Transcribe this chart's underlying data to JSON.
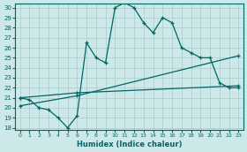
{
  "xlabel": "Humidex (Indice chaleur)",
  "xlim_min": -0.5,
  "xlim_max": 23.5,
  "ylim_min": 17.8,
  "ylim_max": 30.4,
  "xticks": [
    0,
    1,
    2,
    3,
    4,
    5,
    6,
    7,
    8,
    9,
    10,
    11,
    12,
    13,
    14,
    15,
    16,
    17,
    18,
    19,
    20,
    21,
    22,
    23
  ],
  "yticks": [
    18,
    19,
    20,
    21,
    22,
    23,
    24,
    25,
    26,
    27,
    28,
    29,
    30
  ],
  "bg_color": "#cce8e8",
  "grid_color": "#aacccc",
  "line_color": "#006666",
  "line1_x": [
    0,
    1,
    2,
    3,
    4,
    5,
    6,
    7,
    8,
    9,
    10,
    11,
    12,
    13,
    14,
    15,
    16,
    17,
    18,
    19,
    20,
    21,
    22,
    23
  ],
  "line1_y": [
    21.0,
    20.8,
    20.0,
    19.8,
    19.0,
    18.0,
    19.2,
    26.5,
    25.0,
    24.5,
    30.0,
    30.5,
    30.0,
    28.5,
    27.5,
    29.0,
    28.5,
    26.0,
    25.5,
    25.0,
    25.0,
    22.5,
    22.0,
    22.0
  ],
  "line2_x": [
    0,
    6,
    23
  ],
  "line2_y": [
    21.0,
    21.5,
    22.2
  ],
  "line3_x": [
    0,
    6,
    23
  ],
  "line3_y": [
    20.2,
    21.2,
    25.2
  ]
}
